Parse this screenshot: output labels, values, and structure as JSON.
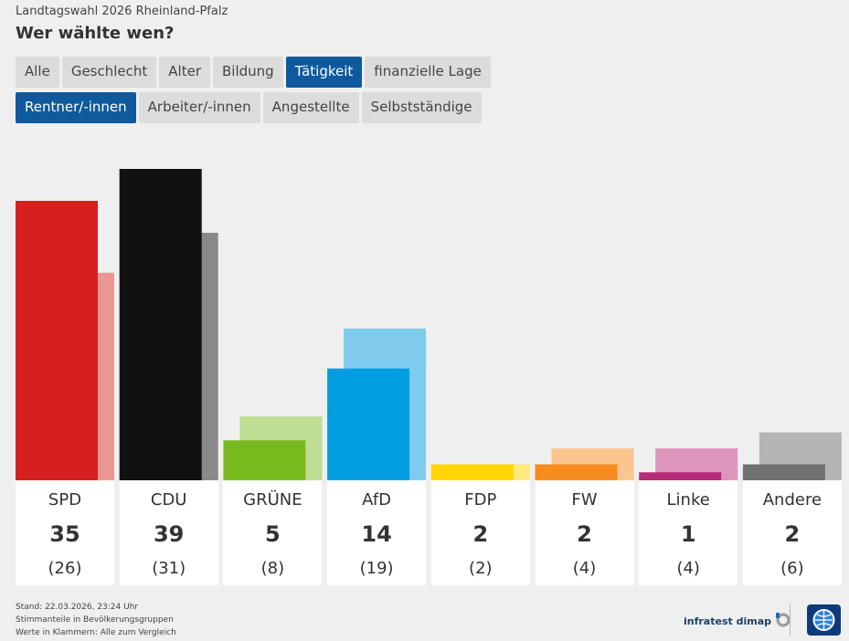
{
  "header": {
    "supertitle": "Landtagswahl 2026 Rheinland-Pfalz",
    "title": "Wer wählte wen?"
  },
  "tabs_primary": [
    {
      "label": "Alle",
      "active": false
    },
    {
      "label": "Geschlecht",
      "active": false
    },
    {
      "label": "Alter",
      "active": false
    },
    {
      "label": "Bildung",
      "active": false
    },
    {
      "label": "Tätigkeit",
      "active": true
    },
    {
      "label": "finanzielle Lage",
      "active": false
    }
  ],
  "tabs_secondary": [
    {
      "label": "Rentner/-innen",
      "active": true
    },
    {
      "label": "Arbeiter/-innen",
      "active": false
    },
    {
      "label": "Angestellte",
      "active": false
    },
    {
      "label": "Selbstständige",
      "active": false
    }
  ],
  "chart_data": {
    "type": "bar",
    "categories": [
      "SPD",
      "CDU",
      "GRÜNE",
      "AfD",
      "FDP",
      "FW",
      "Linke",
      "Andere"
    ],
    "values": [
      35,
      39,
      5,
      14,
      2,
      2,
      1,
      2
    ],
    "previous_values": [
      26,
      31,
      8,
      19,
      2,
      4,
      4,
      6
    ],
    "value_labels": [
      "35",
      "39",
      "5",
      "14",
      "2",
      "2",
      "1",
      "2"
    ],
    "previous_labels": [
      "(26)",
      "(31)",
      "(8)",
      "(19)",
      "(2)",
      "(4)",
      "(4)",
      "(6)"
    ],
    "colors": [
      "#d5201f",
      "#111111",
      "#78bb1f",
      "#009ee0",
      "#ffd400",
      "#f78b1e",
      "#b72c78",
      "#707070"
    ],
    "colors_previous": [
      "#e99793",
      "#8a8a8a",
      "#bddd92",
      "#7ecbed",
      "#ffe97d",
      "#fbc58f",
      "#dd96bb",
      "#b4b4b4"
    ],
    "ylim": [
      0,
      39
    ],
    "grid": false
  },
  "footer": {
    "line1": "Stand: 22.03.2026, 23:24 Uhr",
    "line2": "Stimmanteile in Bevölkerungsgruppen",
    "line3": "Werte in Klammern: Alle zum Vergleich"
  },
  "branding": {
    "pollster": "infratest dimap",
    "logo_icon": "tagesschau-logo-icon"
  }
}
